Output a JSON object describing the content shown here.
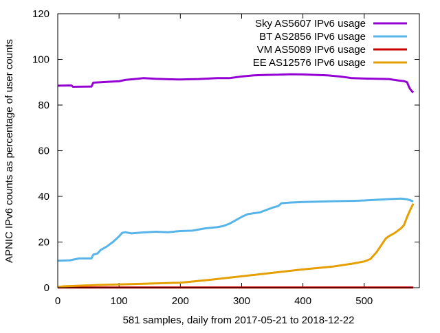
{
  "chart_data": {
    "type": "line",
    "title": "",
    "xlabel": "581 samples, daily from 2017-05-21 to 2018-12-22",
    "ylabel": "APNIC IPv6 counts as percentage of user counts",
    "xlim": [
      0,
      590
    ],
    "ylim": [
      0,
      120
    ],
    "x_ticks": [
      0,
      100,
      200,
      300,
      400,
      500
    ],
    "y_ticks": [
      0,
      20,
      40,
      60,
      80,
      100,
      120
    ],
    "grid": false,
    "legend_position": "top-right",
    "series": [
      {
        "name": "Sky AS5607 IPv6 usage",
        "color": "#9400d3",
        "points": [
          [
            0,
            88.5
          ],
          [
            22,
            88.6
          ],
          [
            25,
            88.0
          ],
          [
            55,
            88.1
          ],
          [
            58,
            89.8
          ],
          [
            90,
            90.3
          ],
          [
            100,
            90.4
          ],
          [
            110,
            91.0
          ],
          [
            130,
            91.5
          ],
          [
            140,
            91.8
          ],
          [
            160,
            91.5
          ],
          [
            180,
            91.3
          ],
          [
            200,
            91.2
          ],
          [
            230,
            91.4
          ],
          [
            260,
            91.8
          ],
          [
            280,
            91.8
          ],
          [
            300,
            92.5
          ],
          [
            320,
            93.0
          ],
          [
            340,
            93.2
          ],
          [
            360,
            93.3
          ],
          [
            380,
            93.5
          ],
          [
            400,
            93.4
          ],
          [
            420,
            93.2
          ],
          [
            440,
            93.0
          ],
          [
            460,
            92.5
          ],
          [
            480,
            91.8
          ],
          [
            500,
            91.6
          ],
          [
            520,
            91.5
          ],
          [
            540,
            91.4
          ],
          [
            555,
            90.8
          ],
          [
            565,
            90.5
          ],
          [
            570,
            90.0
          ],
          [
            573,
            88.0
          ],
          [
            575,
            87.0
          ],
          [
            578,
            86.0
          ],
          [
            580,
            85.5
          ]
        ]
      },
      {
        "name": "BT AS2856 IPv6 usage",
        "color": "#56b4e9",
        "points": [
          [
            0,
            11.8
          ],
          [
            20,
            12.0
          ],
          [
            35,
            12.8
          ],
          [
            55,
            12.8
          ],
          [
            58,
            14.5
          ],
          [
            65,
            15.0
          ],
          [
            70,
            16.5
          ],
          [
            80,
            18.0
          ],
          [
            90,
            20.0
          ],
          [
            100,
            22.5
          ],
          [
            105,
            24.0
          ],
          [
            110,
            24.3
          ],
          [
            120,
            23.8
          ],
          [
            140,
            24.2
          ],
          [
            160,
            24.5
          ],
          [
            180,
            24.3
          ],
          [
            200,
            24.8
          ],
          [
            220,
            25.0
          ],
          [
            240,
            26.0
          ],
          [
            260,
            26.5
          ],
          [
            270,
            27.0
          ],
          [
            280,
            28.0
          ],
          [
            290,
            29.5
          ],
          [
            300,
            31.0
          ],
          [
            310,
            32.2
          ],
          [
            330,
            33.0
          ],
          [
            340,
            34.0
          ],
          [
            350,
            35.0
          ],
          [
            360,
            35.8
          ],
          [
            365,
            37.0
          ],
          [
            380,
            37.3
          ],
          [
            400,
            37.5
          ],
          [
            440,
            37.8
          ],
          [
            480,
            38.0
          ],
          [
            500,
            38.2
          ],
          [
            520,
            38.5
          ],
          [
            540,
            38.8
          ],
          [
            560,
            39.0
          ],
          [
            570,
            38.7
          ],
          [
            575,
            38.3
          ],
          [
            580,
            37.8
          ]
        ]
      },
      {
        "name": "VM AS5089 IPv6 usage",
        "color": "#cc0000",
        "points": [
          [
            0,
            0.1
          ],
          [
            580,
            0.1
          ]
        ]
      },
      {
        "name": "EE AS12576 IPv6 usage",
        "color": "#e69f00",
        "points": [
          [
            0,
            0.3
          ],
          [
            10,
            0.6
          ],
          [
            30,
            0.8
          ],
          [
            60,
            1.1
          ],
          [
            100,
            1.4
          ],
          [
            150,
            1.8
          ],
          [
            200,
            2.2
          ],
          [
            250,
            3.5
          ],
          [
            300,
            5.0
          ],
          [
            350,
            6.5
          ],
          [
            400,
            8.0
          ],
          [
            450,
            9.3
          ],
          [
            480,
            10.5
          ],
          [
            500,
            11.5
          ],
          [
            510,
            12.5
          ],
          [
            515,
            14.0
          ],
          [
            520,
            15.5
          ],
          [
            525,
            17.5
          ],
          [
            530,
            19.5
          ],
          [
            535,
            21.5
          ],
          [
            540,
            22.5
          ],
          [
            550,
            24.0
          ],
          [
            560,
            26.0
          ],
          [
            565,
            27.5
          ],
          [
            570,
            31.0
          ],
          [
            575,
            34.0
          ],
          [
            580,
            36.8
          ]
        ]
      }
    ]
  }
}
